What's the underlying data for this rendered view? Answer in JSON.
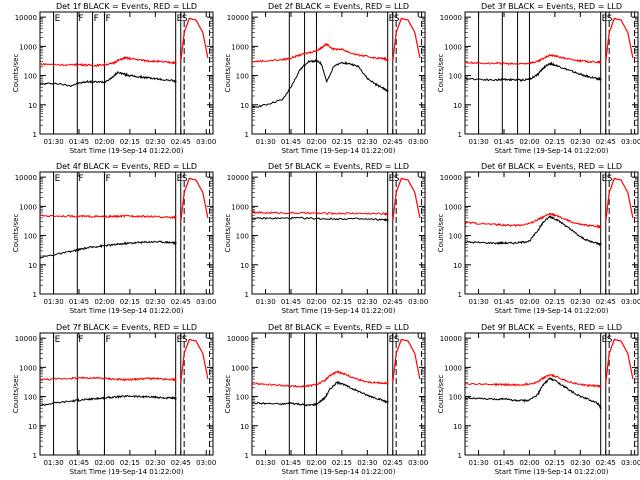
{
  "ylabel": "Counts/sec",
  "xlabel": "Start Time (19-Sep-14 01:22:00)",
  "xticks": [
    "01:30",
    "01:45",
    "02:00",
    "02:15",
    "02:30",
    "02:45",
    "03:00"
  ],
  "yticks": [
    "1",
    "10",
    "100",
    "1000",
    "10000"
  ],
  "colors": {
    "events": "#000000",
    "lld": "#ff0000"
  },
  "chart_data": [
    {
      "type": "line",
      "title": "Det 1f BLACK = Events, RED = LLD",
      "yscale": "log",
      "ylim": [
        1,
        15000
      ],
      "xlim": [
        "01:22",
        "03:04"
      ],
      "x": [
        "01:22",
        "01:30",
        "01:40",
        "01:45",
        "01:50",
        "01:55",
        "02:00",
        "02:05",
        "02:08",
        "02:12",
        "02:15",
        "02:20",
        "02:25",
        "02:30",
        "02:35",
        "02:40",
        "02:42"
      ],
      "series": [
        {
          "name": "Events",
          "values": [
            50,
            55,
            45,
            55,
            62,
            60,
            60,
            90,
            130,
            110,
            100,
            90,
            85,
            78,
            72,
            68,
            62
          ]
        },
        {
          "name": "LLD",
          "values": [
            250,
            240,
            230,
            240,
            230,
            220,
            240,
            260,
            330,
            400,
            380,
            350,
            320,
            310,
            290,
            280,
            260
          ]
        }
      ],
      "markers": [
        {
          "x": "01:30",
          "label": "E"
        },
        {
          "x": "01:44",
          "label": "F"
        },
        {
          "x": "01:53",
          "label": "F"
        },
        {
          "x": "02:00",
          "label": "F"
        },
        {
          "x": "02:42",
          "label": "E"
        },
        {
          "x": "02:45",
          "label": "S"
        }
      ],
      "dashed": [
        "02:47",
        "03:02"
      ]
    },
    {
      "type": "line",
      "title": "Det 2f BLACK = Events, RED = LLD",
      "yscale": "log",
      "ylim": [
        1,
        15000
      ],
      "xlim": [
        "01:22",
        "03:04"
      ],
      "x": [
        "01:22",
        "01:30",
        "01:40",
        "01:45",
        "01:50",
        "01:55",
        "02:00",
        "02:03",
        "02:06",
        "02:10",
        "02:15",
        "02:20",
        "02:25",
        "02:30",
        "02:35",
        "02:40",
        "02:42"
      ],
      "series": [
        {
          "name": "Events",
          "values": [
            8,
            10,
            15,
            40,
            150,
            300,
            320,
            250,
            60,
            200,
            280,
            250,
            200,
            80,
            50,
            35,
            30
          ]
        },
        {
          "name": "LLD",
          "values": [
            300,
            320,
            350,
            400,
            500,
            600,
            700,
            900,
            1200,
            800,
            800,
            600,
            500,
            450,
            400,
            380,
            350
          ]
        }
      ],
      "markers": [
        {
          "x": "01:44",
          "label": ""
        },
        {
          "x": "01:53",
          "label": ""
        },
        {
          "x": "02:00",
          "label": ""
        },
        {
          "x": "02:42",
          "label": "E"
        },
        {
          "x": "02:45",
          "label": "S"
        }
      ],
      "dashed": [
        "02:47",
        "03:02"
      ]
    },
    {
      "type": "line",
      "title": "Det 3f BLACK = Events, RED = LLD",
      "yscale": "log",
      "ylim": [
        1,
        15000
      ],
      "xlim": [
        "01:22",
        "03:04"
      ],
      "x": [
        "01:22",
        "01:30",
        "01:40",
        "01:45",
        "01:50",
        "01:55",
        "02:00",
        "02:05",
        "02:08",
        "02:12",
        "02:15",
        "02:20",
        "02:25",
        "02:30",
        "02:35",
        "02:40",
        "02:42"
      ],
      "series": [
        {
          "name": "Events",
          "values": [
            80,
            75,
            70,
            75,
            72,
            70,
            75,
            110,
            180,
            260,
            230,
            180,
            140,
            110,
            90,
            80,
            75
          ]
        },
        {
          "name": "LLD",
          "values": [
            280,
            270,
            260,
            260,
            250,
            250,
            270,
            300,
            380,
            500,
            470,
            400,
            350,
            320,
            300,
            290,
            280
          ]
        }
      ],
      "markers": [
        {
          "x": "01:30",
          "label": ""
        },
        {
          "x": "01:44",
          "label": ""
        },
        {
          "x": "01:53",
          "label": ""
        },
        {
          "x": "02:00",
          "label": ""
        },
        {
          "x": "02:42",
          "label": "E"
        },
        {
          "x": "02:45",
          "label": "S"
        }
      ],
      "dashed": [
        "02:47",
        "03:02"
      ]
    },
    {
      "type": "line",
      "title": "Det 4f BLACK = Events, RED = LLD",
      "yscale": "log",
      "ylim": [
        1,
        15000
      ],
      "xlim": [
        "01:22",
        "03:04"
      ],
      "x": [
        "01:22",
        "01:30",
        "01:40",
        "01:45",
        "01:50",
        "01:55",
        "02:00",
        "02:05",
        "02:10",
        "02:15",
        "02:20",
        "02:25",
        "02:30",
        "02:35",
        "02:40",
        "02:42"
      ],
      "series": [
        {
          "name": "Events",
          "values": [
            18,
            22,
            28,
            33,
            38,
            42,
            45,
            48,
            52,
            55,
            58,
            60,
            62,
            60,
            58,
            55
          ]
        },
        {
          "name": "LLD",
          "values": [
            480,
            470,
            460,
            460,
            450,
            450,
            440,
            450,
            460,
            470,
            460,
            450,
            440,
            430,
            420,
            420
          ]
        }
      ],
      "markers": [
        {
          "x": "01:30",
          "label": "E"
        },
        {
          "x": "01:44",
          "label": "F"
        },
        {
          "x": "02:00",
          "label": "F"
        },
        {
          "x": "02:42",
          "label": "E"
        },
        {
          "x": "02:45",
          "label": "S"
        }
      ],
      "dashed": [
        "02:47",
        "03:02"
      ]
    },
    {
      "type": "line",
      "title": "Det 5f BLACK = Events, RED = LLD",
      "yscale": "log",
      "ylim": [
        1,
        15000
      ],
      "xlim": [
        "01:22",
        "03:04"
      ],
      "x": [
        "01:22",
        "01:30",
        "01:40",
        "01:50",
        "02:00",
        "02:10",
        "02:20",
        "02:30",
        "02:40",
        "02:42"
      ],
      "series": [
        {
          "name": "Events",
          "values": [
            380,
            390,
            390,
            400,
            380,
            370,
            380,
            360,
            350,
            340
          ]
        },
        {
          "name": "LLD",
          "values": [
            620,
            600,
            600,
            590,
            580,
            570,
            580,
            570,
            560,
            550
          ]
        }
      ],
      "markers": [
        {
          "x": "01:44",
          "label": ""
        },
        {
          "x": "02:00",
          "label": ""
        },
        {
          "x": "02:42",
          "label": "E"
        },
        {
          "x": "02:45",
          "label": "S"
        }
      ],
      "dashed": [
        "02:47",
        "03:02"
      ]
    },
    {
      "type": "line",
      "title": "Det 6f BLACK = Events, RED = LLD",
      "yscale": "log",
      "ylim": [
        1,
        15000
      ],
      "xlim": [
        "01:22",
        "03:04"
      ],
      "x": [
        "01:22",
        "01:30",
        "01:40",
        "01:45",
        "01:50",
        "01:55",
        "02:00",
        "02:05",
        "02:08",
        "02:12",
        "02:15",
        "02:20",
        "02:25",
        "02:30",
        "02:35",
        "02:40",
        "02:42"
      ],
      "series": [
        {
          "name": "Events",
          "values": [
            60,
            58,
            55,
            56,
            55,
            58,
            65,
            150,
            280,
            450,
            380,
            250,
            150,
            90,
            65,
            55,
            50
          ]
        },
        {
          "name": "LLD",
          "values": [
            280,
            260,
            240,
            230,
            220,
            230,
            260,
            350,
            420,
            560,
            500,
            380,
            290,
            240,
            220,
            210,
            200
          ]
        }
      ],
      "markers": [
        {
          "x": "02:42",
          "label": "E"
        },
        {
          "x": "02:45",
          "label": "S"
        }
      ],
      "dashed": [
        "02:47",
        "03:02"
      ]
    },
    {
      "type": "line",
      "title": "Det 7f BLACK = Events, RED = LLD",
      "yscale": "log",
      "ylim": [
        1,
        15000
      ],
      "xlim": [
        "01:22",
        "03:04"
      ],
      "x": [
        "01:22",
        "01:30",
        "01:40",
        "01:45",
        "01:50",
        "01:55",
        "02:00",
        "02:05",
        "02:10",
        "02:15",
        "02:20",
        "02:25",
        "02:30",
        "02:35",
        "02:40",
        "02:42"
      ],
      "series": [
        {
          "name": "Events",
          "values": [
            50,
            60,
            70,
            75,
            80,
            85,
            90,
            95,
            100,
            105,
            100,
            98,
            95,
            90,
            88,
            85
          ]
        },
        {
          "name": "LLD",
          "values": [
            380,
            400,
            420,
            430,
            440,
            430,
            420,
            400,
            380,
            380,
            400,
            420,
            410,
            390,
            380,
            370
          ]
        }
      ],
      "markers": [
        {
          "x": "01:30",
          "label": "E"
        },
        {
          "x": "01:44",
          "label": "F"
        },
        {
          "x": "02:00",
          "label": "F"
        },
        {
          "x": "02:42",
          "label": "E"
        },
        {
          "x": "02:45",
          "label": "S"
        }
      ],
      "dashed": [
        "02:47",
        "03:02"
      ]
    },
    {
      "type": "line",
      "title": "Det 8f BLACK = Events, RED = LLD",
      "yscale": "log",
      "ylim": [
        1,
        15000
      ],
      "xlim": [
        "01:22",
        "03:04"
      ],
      "x": [
        "01:22",
        "01:30",
        "01:40",
        "01:45",
        "01:50",
        "01:55",
        "02:00",
        "02:05",
        "02:08",
        "02:12",
        "02:15",
        "02:20",
        "02:25",
        "02:30",
        "02:35",
        "02:40",
        "02:42"
      ],
      "series": [
        {
          "name": "Events",
          "values": [
            60,
            58,
            55,
            60,
            55,
            50,
            55,
            90,
            180,
            300,
            280,
            200,
            150,
            110,
            90,
            70,
            65
          ]
        },
        {
          "name": "LLD",
          "values": [
            280,
            260,
            240,
            230,
            220,
            230,
            260,
            350,
            520,
            700,
            650,
            480,
            380,
            320,
            300,
            290,
            280
          ]
        }
      ],
      "markers": [
        {
          "x": "01:44",
          "label": ""
        },
        {
          "x": "01:53",
          "label": ""
        },
        {
          "x": "02:00",
          "label": ""
        },
        {
          "x": "02:42",
          "label": "E"
        },
        {
          "x": "02:45",
          "label": "S"
        }
      ],
      "dashed": [
        "02:47",
        "03:02"
      ]
    },
    {
      "type": "line",
      "title": "Det 9f BLACK = Events, RED = LLD",
      "yscale": "log",
      "ylim": [
        1,
        15000
      ],
      "xlim": [
        "01:22",
        "03:04"
      ],
      "x": [
        "01:22",
        "01:30",
        "01:40",
        "01:45",
        "01:50",
        "01:55",
        "02:00",
        "02:05",
        "02:08",
        "02:12",
        "02:15",
        "02:20",
        "02:25",
        "02:30",
        "02:35",
        "02:40",
        "02:42"
      ],
      "series": [
        {
          "name": "Events",
          "values": [
            90,
            85,
            80,
            85,
            75,
            72,
            75,
            120,
            250,
            420,
            360,
            230,
            150,
            100,
            80,
            60,
            40
          ]
        },
        {
          "name": "LLD",
          "values": [
            280,
            270,
            260,
            260,
            250,
            250,
            270,
            320,
            420,
            560,
            500,
            380,
            300,
            260,
            240,
            230,
            220
          ]
        }
      ],
      "markers": [
        {
          "x": "02:42",
          "label": "E"
        },
        {
          "x": "02:45",
          "label": "S"
        }
      ],
      "dashed": [
        "02:47",
        "03:02"
      ]
    }
  ]
}
